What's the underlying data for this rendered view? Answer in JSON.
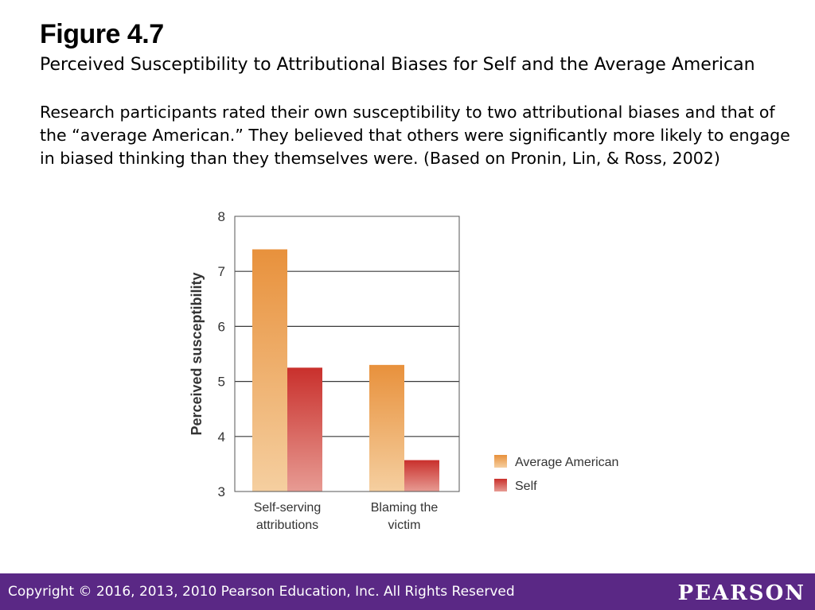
{
  "figure": {
    "title": "Figure 4.7",
    "subtitle": "Perceived Susceptibility to Attributional Biases for Self and the Average American",
    "caption": "Research participants rated their own susceptibility to two attributional biases and that of the “average American.” They believed that others were significantly more likely to engage in biased thinking than they themselves were. (Based on Pronin, Lin, & Ross, 2002)"
  },
  "chart_data": {
    "type": "bar",
    "title": "",
    "xlabel": "",
    "ylabel": "Perceived susceptibility",
    "categories": [
      [
        "Self-serving",
        "attributions"
      ],
      [
        "Blaming the",
        "victim"
      ]
    ],
    "series": [
      {
        "name": "Average American",
        "values": [
          7.4,
          5.3
        ],
        "color": "#e8913c"
      },
      {
        "name": "Self",
        "values": [
          5.25,
          3.57
        ],
        "color": "#c9302c"
      }
    ],
    "ylim": [
      3,
      8
    ],
    "yticks": [
      3,
      4,
      5,
      6,
      7,
      8
    ],
    "grid": true,
    "legend": "right"
  },
  "footer": {
    "copyright": "Copyright © 2016, 2013, 2010 Pearson Education, Inc. All Rights Reserved",
    "brand": "PEARSON",
    "background": "#5a2885"
  }
}
